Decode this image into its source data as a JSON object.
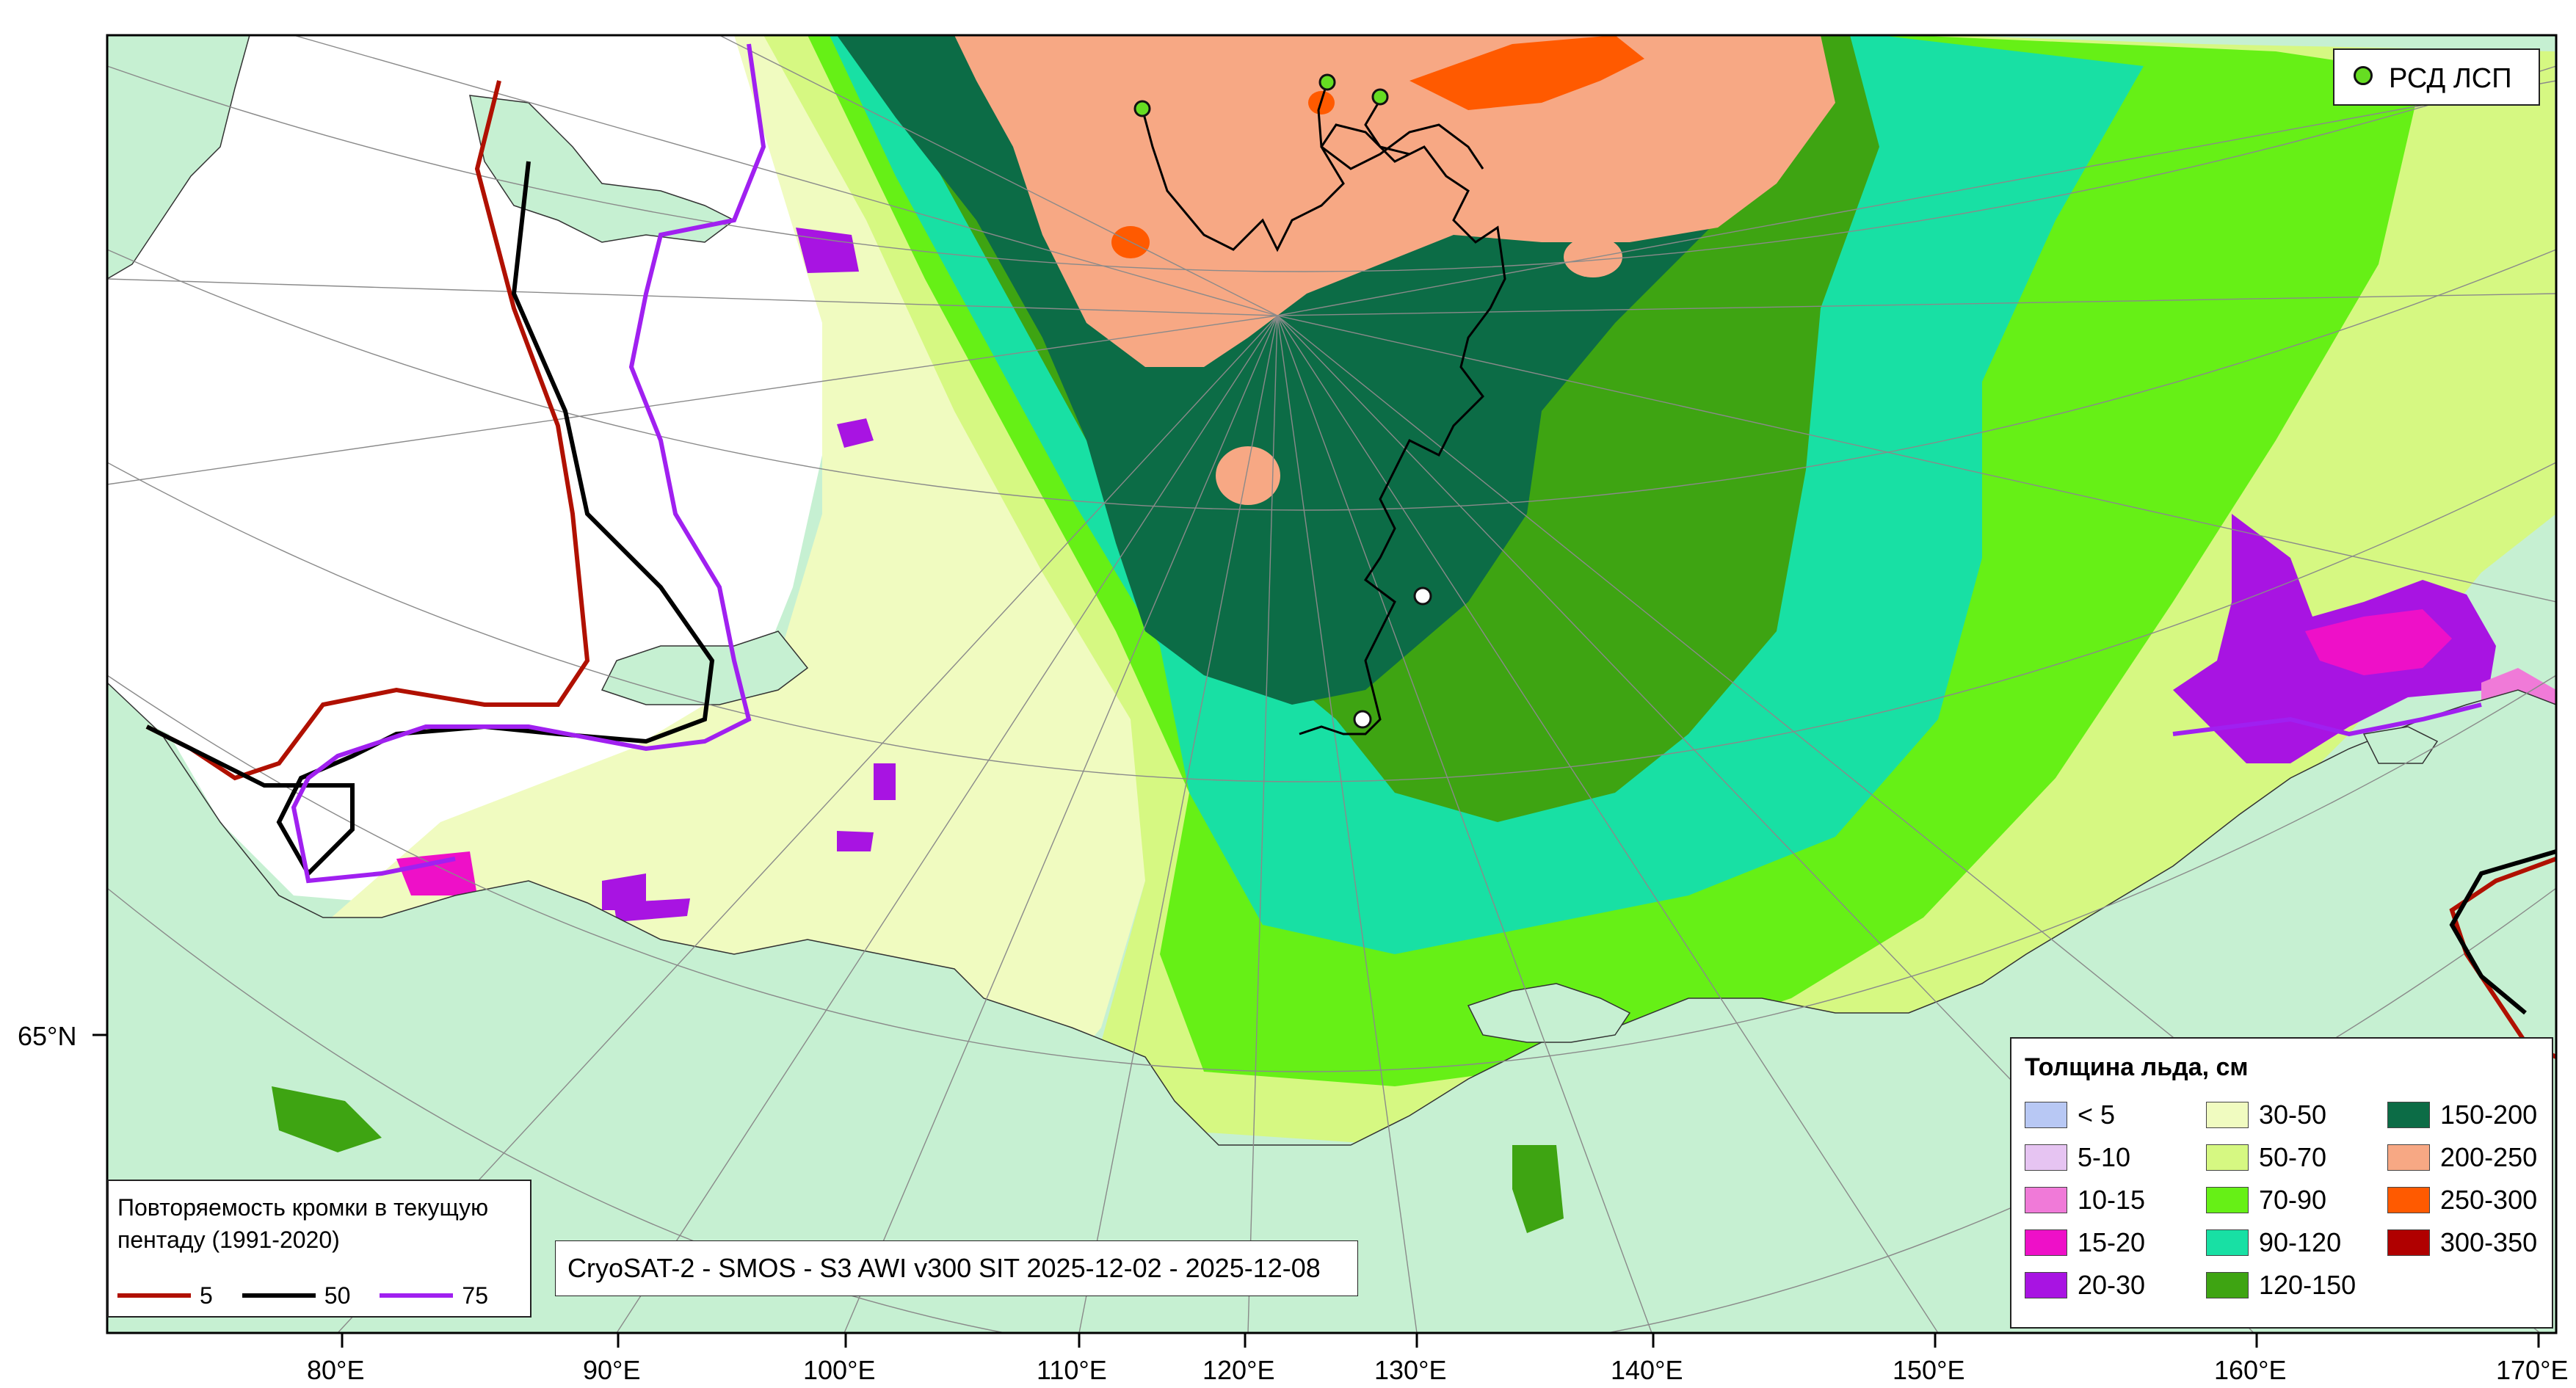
{
  "map": {
    "title_box": "CryoSAT-2 - SMOS - S3 AWI v300 SIT 2025-12-02 - 2025-12-08",
    "lon_labels": [
      "80°E",
      "90°E",
      "100°E",
      "110°E",
      "120°E",
      "130°E",
      "140°E",
      "150°E",
      "160°E",
      "170°E"
    ],
    "lat_label": "65°N",
    "buoy_legend": {
      "label": "РСД ЛСП",
      "color": "#66dd22"
    },
    "thickness_legend": {
      "title": "Толщина льда, см",
      "classes": [
        {
          "label": "< 5",
          "color": "#b8c8f4"
        },
        {
          "label": "5-10",
          "color": "#e6c4f2"
        },
        {
          "label": "10-15",
          "color": "#f07ad8"
        },
        {
          "label": "15-20",
          "color": "#ee10c8"
        },
        {
          "label": "20-30",
          "color": "#a814e2"
        },
        {
          "label": "30-50",
          "color": "#f0fbc0"
        },
        {
          "label": "50-70",
          "color": "#d6f882"
        },
        {
          "label": "70-90",
          "color": "#66f016"
        },
        {
          "label": "90-120",
          "color": "#18e0a4"
        },
        {
          "label": "120-150",
          "color": "#3ea412"
        },
        {
          "label": "150-200",
          "color": "#0c6c46"
        },
        {
          "label": "200-250",
          "color": "#f7a884"
        },
        {
          "label": "250-300",
          "color": "#ff5a00"
        },
        {
          "label": "300-350",
          "color": "#b00000"
        }
      ]
    },
    "frequency_legend": {
      "title": "Повторяемость кромки в текущую пентаду (1991-2020)",
      "lines": [
        {
          "label": "5",
          "color": "#b01000"
        },
        {
          "label": "50",
          "color": "#000000"
        },
        {
          "label": "75",
          "color": "#a020f0"
        }
      ]
    },
    "colors": {
      "land": "#c6f0d2",
      "ice_free": "#ffffff",
      "frame": "#000000",
      "graticule": "#8a8a8a"
    }
  }
}
